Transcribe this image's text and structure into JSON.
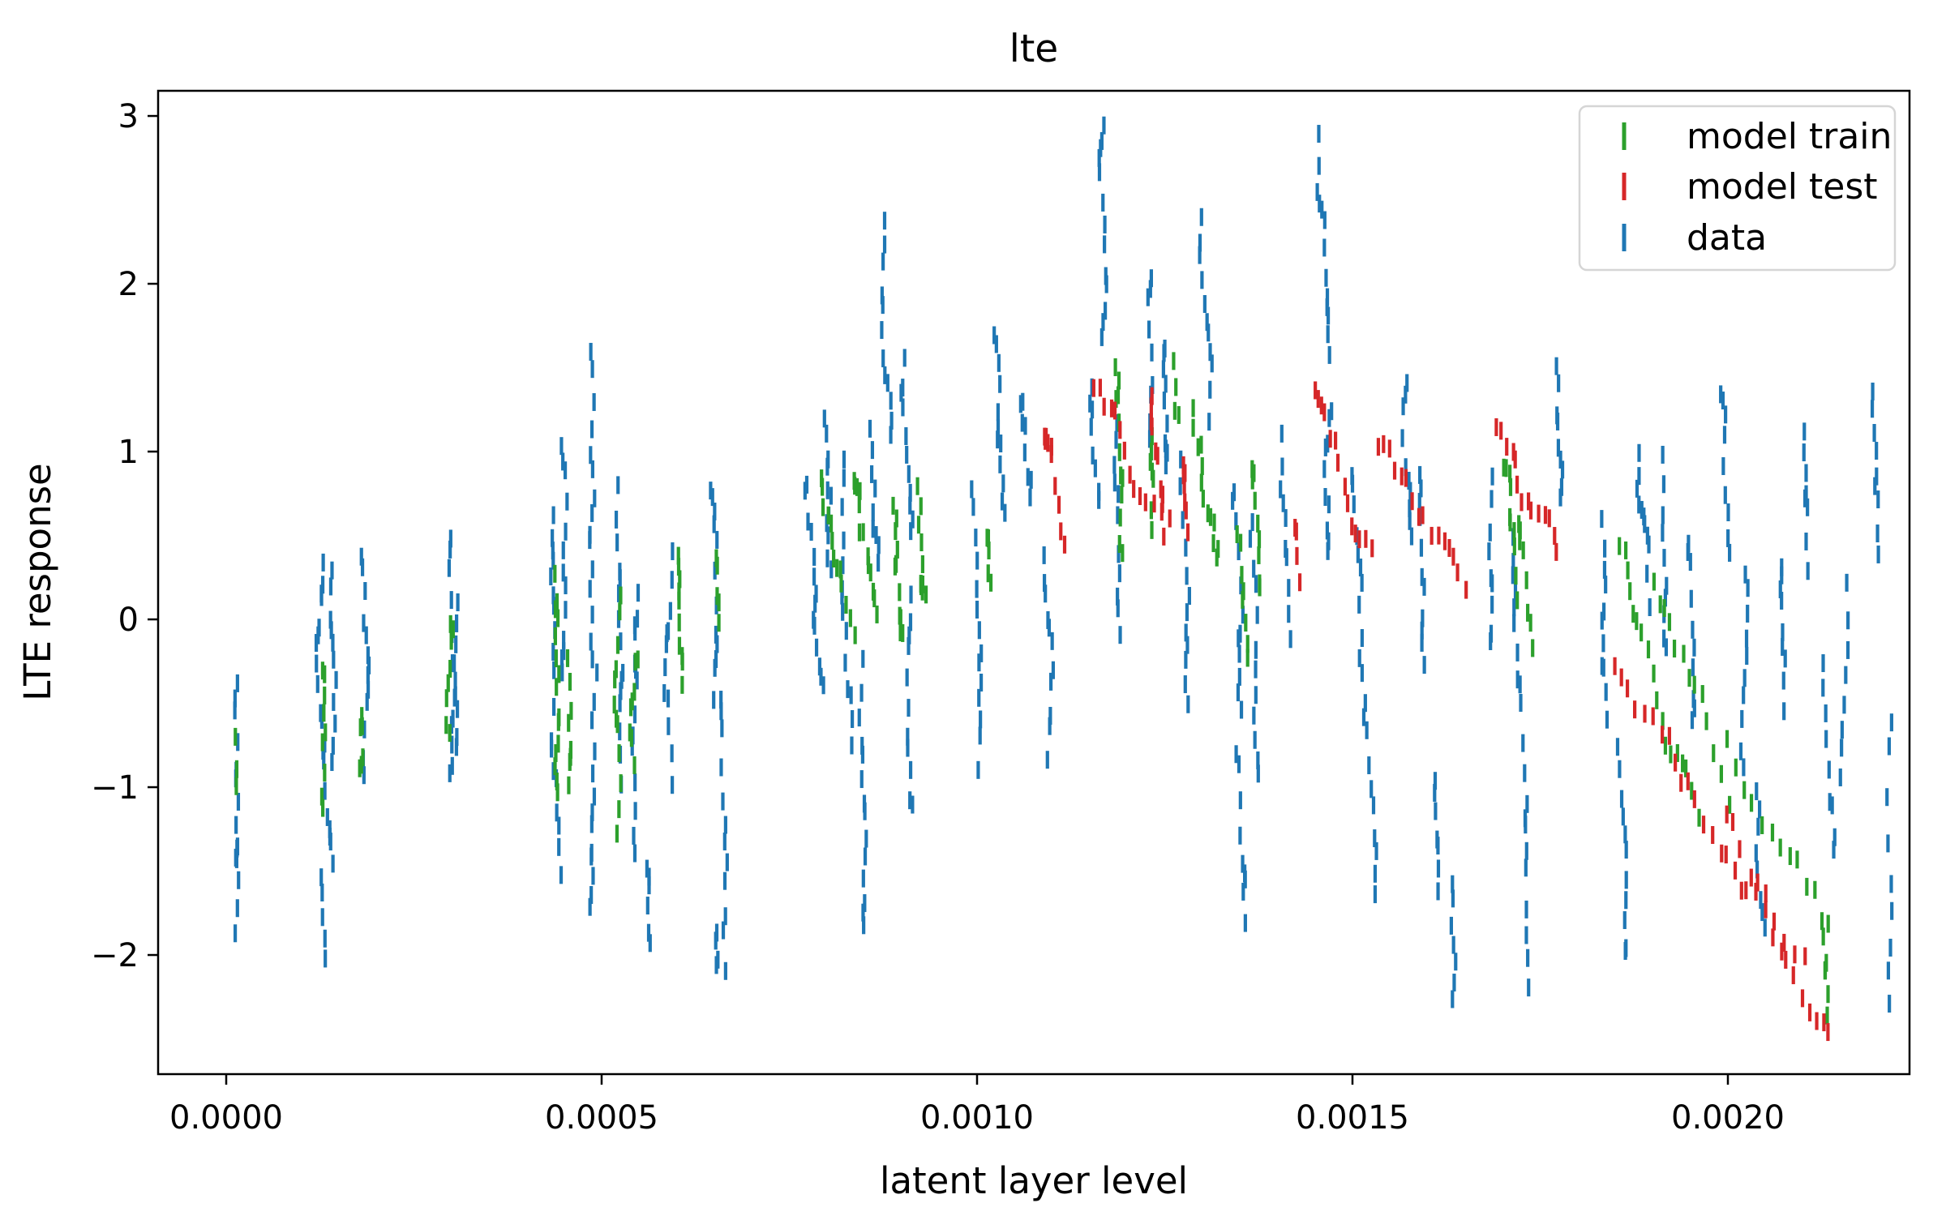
{
  "chart_data": {
    "type": "scatter",
    "marker": "|",
    "marker_px": {
      "height": 22,
      "width": 4.2
    },
    "title": "lte",
    "xlabel": "latent layer level",
    "ylabel": "LTE response",
    "xlim": [
      -9.07e-05,
      0.0022419
    ],
    "ylim": [
      -2.71,
      3.15
    ],
    "grid": false,
    "legend_position": "upper right",
    "x_ticks": [
      {
        "v": 0.0,
        "label": "0.0000"
      },
      {
        "v": 0.0005,
        "label": "0.0005"
      },
      {
        "v": 0.001,
        "label": "0.0010"
      },
      {
        "v": 0.0015,
        "label": "0.0015"
      },
      {
        "v": 0.002,
        "label": "0.0020"
      }
    ],
    "y_ticks": [
      {
        "v": 3,
        "label": "3"
      },
      {
        "v": 2,
        "label": "2"
      },
      {
        "v": 1,
        "label": "1"
      },
      {
        "v": 0,
        "label": "0"
      },
      {
        "v": -1,
        "label": "−1"
      },
      {
        "v": -2,
        "label": "−2"
      }
    ],
    "trail_format": [
      "x_start",
      "y_start",
      "y_end",
      "x_drift",
      "n_markers"
    ],
    "series": [
      {
        "name": "model train",
        "color": "#2ca02c",
        "trails": [
          [
            1.55e-05,
            -0.78,
            -0.98,
            0,
            3
          ],
          [
            0.000131,
            -0.25,
            -1.05,
            0,
            9
          ],
          [
            0.000182,
            -0.52,
            -0.98,
            0,
            6
          ],
          [
            0.0003,
            -0.1,
            -0.8,
            3e-06,
            8
          ],
          [
            0.00044,
            0.25,
            -1.22,
            4e-06,
            15
          ],
          [
            0.000455,
            -0.3,
            -1.05,
            3e-06,
            8
          ],
          [
            0.000522,
            0.15,
            -1.15,
            4e-06,
            12
          ],
          [
            0.000545,
            -0.18,
            -0.92,
            3e-06,
            8
          ],
          [
            0.0006,
            0.45,
            -0.48,
            4e-06,
            10
          ],
          [
            0.000655,
            0.35,
            -0.02,
            2e-06,
            5
          ],
          [
            0.00079,
            0.85,
            0.08,
            4e-05,
            13
          ],
          [
            0.00084,
            0.88,
            0.02,
            3e-05,
            13
          ],
          [
            0.000885,
            0.68,
            -0.12,
            2e-05,
            11
          ],
          [
            0.00092,
            0.8,
            0.1,
            1e-05,
            10
          ],
          [
            0.00101,
            0.55,
            0.18,
            2e-06,
            5
          ],
          [
            0.001185,
            1.45,
            0.45,
            1.2e-05,
            12
          ],
          [
            0.00123,
            1.05,
            0.5,
            6e-06,
            7
          ],
          [
            0.001265,
            1.6,
            1.32,
            4e-06,
            4
          ],
          [
            0.00129,
            1.25,
            0.42,
            3e-05,
            13
          ],
          [
            0.00135,
            0.45,
            -0.22,
            8e-06,
            8
          ],
          [
            0.00137,
            0.95,
            0.15,
            1e-05,
            9
          ],
          [
            0.0017,
            0.92,
            0.15,
            2e-05,
            10
          ],
          [
            0.001725,
            0.55,
            -0.22,
            1e-05,
            8
          ],
          [
            0.001852,
            0.45,
            -1.15,
            0.00011,
            18
          ],
          [
            0.001905,
            0.2,
            -1.05,
            0.0001,
            13
          ],
          [
            0.002,
            -0.7,
            -1.85,
            0.00013,
            13
          ],
          [
            0.00213,
            -1.85,
            -2.32,
            1e-05,
            6
          ]
        ]
      },
      {
        "name": "model test",
        "color": "#d62728",
        "trails": [
          [
            0.001092,
            1.15,
            0.45,
            2e-05,
            10
          ],
          [
            0.001158,
            1.35,
            0.5,
            0.0001,
            14
          ],
          [
            0.001232,
            1.25,
            0.45,
            2e-05,
            10
          ],
          [
            0.001275,
            0.9,
            0.4,
            1e-05,
            7
          ],
          [
            0.001425,
            0.55,
            0.25,
            5e-06,
            4
          ],
          [
            0.001452,
            1.3,
            0.35,
            7.5e-05,
            14
          ],
          [
            0.001535,
            1.05,
            0.3,
            0.00012,
            16
          ],
          [
            0.001693,
            1.1,
            0.3,
            8e-05,
            14
          ],
          [
            0.00185,
            -0.2,
            -2.5,
            0.00028,
            30
          ],
          [
            0.002,
            -1.15,
            -2.0,
            0.0001,
            10
          ]
        ]
      },
      {
        "name": "data",
        "color": "#1f77b4",
        "trails": [
          [
            1.5e-05,
            -0.45,
            -1.36,
            0,
            10
          ],
          [
            1.6e-05,
            -1.42,
            -1.8,
            0,
            5
          ],
          [
            0.000128,
            0.35,
            -1.52,
            4e-06,
            20
          ],
          [
            0.00013,
            -1.6,
            -2.02,
            0,
            5
          ],
          [
            0.000143,
            0.28,
            -0.88,
            0,
            11
          ],
          [
            0.00018,
            0.38,
            -0.95,
            3e-06,
            13
          ],
          [
            0.000298,
            0.45,
            -1.0,
            4e-06,
            13
          ],
          [
            0.00031,
            0.02,
            -0.72,
            0,
            8
          ],
          [
            0.000434,
            0.6,
            -1.5,
            5e-06,
            19
          ],
          [
            0.000444,
            1.0,
            -0.35,
            4e-06,
            13
          ],
          [
            0.000487,
            1.52,
            -0.1,
            3e-06,
            15
          ],
          [
            0.000492,
            -0.35,
            -1.76,
            0,
            13
          ],
          [
            0.00052,
            0.72,
            -0.95,
            5e-06,
            15
          ],
          [
            0.000548,
            0.2,
            -1.32,
            4e-06,
            14
          ],
          [
            0.00056,
            -1.45,
            -2.04,
            2e-06,
            6
          ],
          [
            0.000594,
            0.45,
            -0.88,
            4e-06,
            12
          ],
          [
            0.000648,
            0.75,
            -0.5,
            4e-06,
            12
          ],
          [
            0.00066,
            -0.46,
            -2.12,
            1e-06,
            12
          ],
          [
            0.000656,
            -1.8,
            -2.1,
            0,
            4
          ],
          [
            0.00077,
            0.85,
            -0.55,
            2e-05,
            14
          ],
          [
            0.0008,
            1.25,
            0.1,
            8e-06,
            11
          ],
          [
            0.000823,
            0.9,
            -0.7,
            1e-05,
            14
          ],
          [
            0.000845,
            -0.3,
            -1.9,
            1e-05,
            14
          ],
          [
            0.00086,
            1.1,
            0.3,
            6e-06,
            9
          ],
          [
            0.00088,
            2.37,
            1.05,
            4e-06,
            12
          ],
          [
            0.0009,
            1.52,
            0.4,
            6e-06,
            11
          ],
          [
            0.000915,
            0.2,
            -1.05,
            6e-06,
            11
          ],
          [
            0.00099,
            0.8,
            -0.88,
            4e-06,
            14
          ],
          [
            0.001025,
            1.65,
            0.55,
            8e-06,
            12
          ],
          [
            0.00106,
            1.35,
            0.7,
            6e-06,
            8
          ],
          [
            0.00109,
            0.45,
            -0.78,
            6e-06,
            11
          ],
          [
            0.001167,
            2.94,
            1.55,
            4e-06,
            13
          ],
          [
            0.001155,
            1.45,
            0.7,
            6e-06,
            8
          ],
          [
            0.001185,
            1.1,
            -0.2,
            6e-06,
            11
          ],
          [
            0.00123,
            2.0,
            1.1,
            4e-06,
            9
          ],
          [
            0.00125,
            1.62,
            0.8,
            8e-06,
            10
          ],
          [
            0.00127,
            0.9,
            -0.45,
            8e-06,
            12
          ],
          [
            0.0013,
            2.35,
            1.25,
            4e-06,
            11
          ],
          [
            0.00134,
            0.8,
            -0.62,
            8e-06,
            12
          ],
          [
            0.001345,
            -0.85,
            -1.85,
            6e-06,
            9
          ],
          [
            0.00137,
            0.5,
            -0.92,
            6e-06,
            12
          ],
          [
            0.001405,
            1.1,
            0.08,
            6e-06,
            10
          ],
          [
            0.001457,
            2.82,
            1.45,
            4e-06,
            13
          ],
          [
            0.00147,
            1.3,
            0.35,
            6e-06,
            10
          ],
          [
            0.0015,
            0.9,
            -0.35,
            8e-06,
            11
          ],
          [
            0.00152,
            -0.5,
            -1.68,
            6e-06,
            10
          ],
          [
            0.00157,
            1.42,
            0.5,
            6e-06,
            10
          ],
          [
            0.00159,
            0.9,
            -0.28,
            8e-06,
            11
          ],
          [
            0.00161,
            -0.9,
            -1.58,
            4e-06,
            7
          ],
          [
            0.00163,
            -1.55,
            -2.26,
            4e-06,
            7
          ],
          [
            0.00169,
            0.78,
            -0.12,
            6e-06,
            9
          ],
          [
            0.001715,
            0.42,
            -0.55,
            8e-06,
            10
          ],
          [
            0.001725,
            -0.8,
            -1.48,
            4e-06,
            7
          ],
          [
            0.001735,
            -1.72,
            -2.1,
            0,
            4
          ],
          [
            0.001775,
            1.55,
            0.62,
            8e-06,
            9
          ],
          [
            0.00183,
            0.6,
            -0.45,
            8e-06,
            11
          ],
          [
            0.001855,
            -0.72,
            -1.92,
            6e-06,
            11
          ],
          [
            0.00188,
            1.05,
            0.05,
            1e-05,
            11
          ],
          [
            0.00191,
            0.9,
            -0.18,
            8e-06,
            10
          ],
          [
            0.001945,
            0.5,
            -0.62,
            8e-06,
            10
          ],
          [
            0.00199,
            1.42,
            0.52,
            6e-06,
            9
          ],
          [
            0.00202,
            0.2,
            -0.88,
            8e-06,
            10
          ],
          [
            0.00204,
            -1.0,
            -1.88,
            6e-06,
            8
          ],
          [
            0.002075,
            0.28,
            -0.62,
            8e-06,
            9
          ],
          [
            0.0021,
            1.15,
            0.38,
            6e-06,
            8
          ],
          [
            0.00213,
            -0.3,
            -1.32,
            6e-06,
            9
          ],
          [
            0.002155,
            0.18,
            -0.78,
            4e-06,
            8
          ],
          [
            0.00219,
            1.3,
            0.4,
            8e-06,
            9
          ],
          [
            0.00222,
            -0.65,
            -2.3,
            0,
            9
          ]
        ]
      }
    ]
  },
  "layout_note": "matplotlib-style figure, white background, black box spines"
}
